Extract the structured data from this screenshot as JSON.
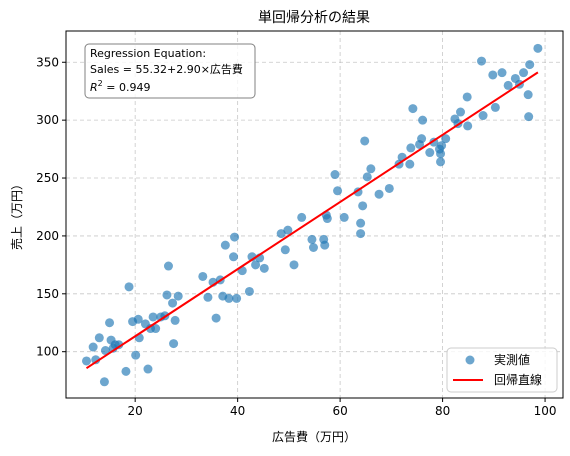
{
  "chart_data": {
    "type": "scatter",
    "title": "単回帰分析の結果",
    "xlabel": "広告費（万円）",
    "ylabel": "売上（万円）",
    "xlim": [
      6.5,
      103.5
    ],
    "ylim": [
      60,
      377
    ],
    "xticks": [
      20,
      40,
      60,
      80,
      100
    ],
    "yticks": [
      100,
      150,
      200,
      250,
      300,
      350
    ],
    "grid": true,
    "legend_position": "bottom-right",
    "annotation": {
      "line1": "Regression Equation:",
      "line2": "Sales = 55.32+2.90×広告費",
      "r2_label": "R",
      "r2_sup": "2",
      "r2_value": " = 0.949",
      "position": "top-left"
    },
    "series": [
      {
        "name": "実測値",
        "kind": "scatter",
        "color": "#1f77b4",
        "points": [
          [
            10.5,
            92
          ],
          [
            11.8,
            104
          ],
          [
            12.3,
            93
          ],
          [
            13.0,
            112
          ],
          [
            14.0,
            74
          ],
          [
            14.2,
            101
          ],
          [
            15.0,
            125
          ],
          [
            15.3,
            110
          ],
          [
            15.7,
            103
          ],
          [
            16.1,
            106
          ],
          [
            16.8,
            106
          ],
          [
            18.2,
            83
          ],
          [
            18.8,
            156
          ],
          [
            19.5,
            126
          ],
          [
            20.1,
            97
          ],
          [
            20.6,
            128
          ],
          [
            20.8,
            112
          ],
          [
            22.0,
            124
          ],
          [
            22.5,
            85
          ],
          [
            23.0,
            120
          ],
          [
            23.5,
            130
          ],
          [
            24.0,
            120
          ],
          [
            25.0,
            130
          ],
          [
            25.8,
            131
          ],
          [
            26.2,
            149
          ],
          [
            26.5,
            174
          ],
          [
            27.3,
            142
          ],
          [
            27.8,
            127
          ],
          [
            27.5,
            107
          ],
          [
            28.4,
            148
          ],
          [
            33.2,
            165
          ],
          [
            34.2,
            147
          ],
          [
            35.2,
            160
          ],
          [
            35.8,
            129
          ],
          [
            36.6,
            162
          ],
          [
            37.1,
            148
          ],
          [
            37.6,
            192
          ],
          [
            38.3,
            146
          ],
          [
            39.2,
            182
          ],
          [
            39.4,
            199
          ],
          [
            39.8,
            146
          ],
          [
            40.9,
            170
          ],
          [
            42.3,
            152
          ],
          [
            42.8,
            182
          ],
          [
            43.5,
            175
          ],
          [
            44.3,
            181
          ],
          [
            45.2,
            172
          ],
          [
            48.5,
            202
          ],
          [
            49.3,
            188
          ],
          [
            49.8,
            205
          ],
          [
            51.0,
            175
          ],
          [
            52.5,
            216
          ],
          [
            54.5,
            197
          ],
          [
            54.8,
            190
          ],
          [
            56.8,
            197
          ],
          [
            57.0,
            192
          ],
          [
            57.3,
            218
          ],
          [
            57.5,
            215
          ],
          [
            59.0,
            253
          ],
          [
            59.5,
            239
          ],
          [
            60.8,
            216
          ],
          [
            63.5,
            238
          ],
          [
            64.0,
            211
          ],
          [
            64.0,
            202
          ],
          [
            64.4,
            226
          ],
          [
            64.8,
            282
          ],
          [
            65.3,
            251
          ],
          [
            66.0,
            258
          ],
          [
            67.6,
            236
          ],
          [
            69.6,
            241
          ],
          [
            71.5,
            262
          ],
          [
            72.1,
            268
          ],
          [
            73.6,
            262
          ],
          [
            73.8,
            276
          ],
          [
            74.2,
            310
          ],
          [
            75.5,
            279
          ],
          [
            75.9,
            284
          ],
          [
            76.1,
            300
          ],
          [
            77.5,
            272
          ],
          [
            78.3,
            281
          ],
          [
            79.4,
            275
          ],
          [
            79.6,
            271
          ],
          [
            79.6,
            264
          ],
          [
            79.8,
            278
          ],
          [
            80.6,
            284
          ],
          [
            82.4,
            301
          ],
          [
            83.0,
            297
          ],
          [
            83.5,
            307
          ],
          [
            84.8,
            320
          ],
          [
            84.9,
            295
          ],
          [
            87.9,
            304
          ],
          [
            87.6,
            351
          ],
          [
            89.8,
            339
          ],
          [
            90.3,
            311
          ],
          [
            91.6,
            341
          ],
          [
            92.8,
            330
          ],
          [
            94.2,
            336
          ],
          [
            95.0,
            331
          ],
          [
            95.8,
            341
          ],
          [
            96.8,
            303
          ],
          [
            96.7,
            322
          ],
          [
            97.0,
            348
          ],
          [
            98.6,
            362
          ]
        ]
      },
      {
        "name": "回帰直線",
        "kind": "line",
        "color": "#ff0000",
        "intercept": 55.32,
        "slope": 2.9,
        "x_range": [
          10.5,
          98.6
        ]
      }
    ]
  }
}
